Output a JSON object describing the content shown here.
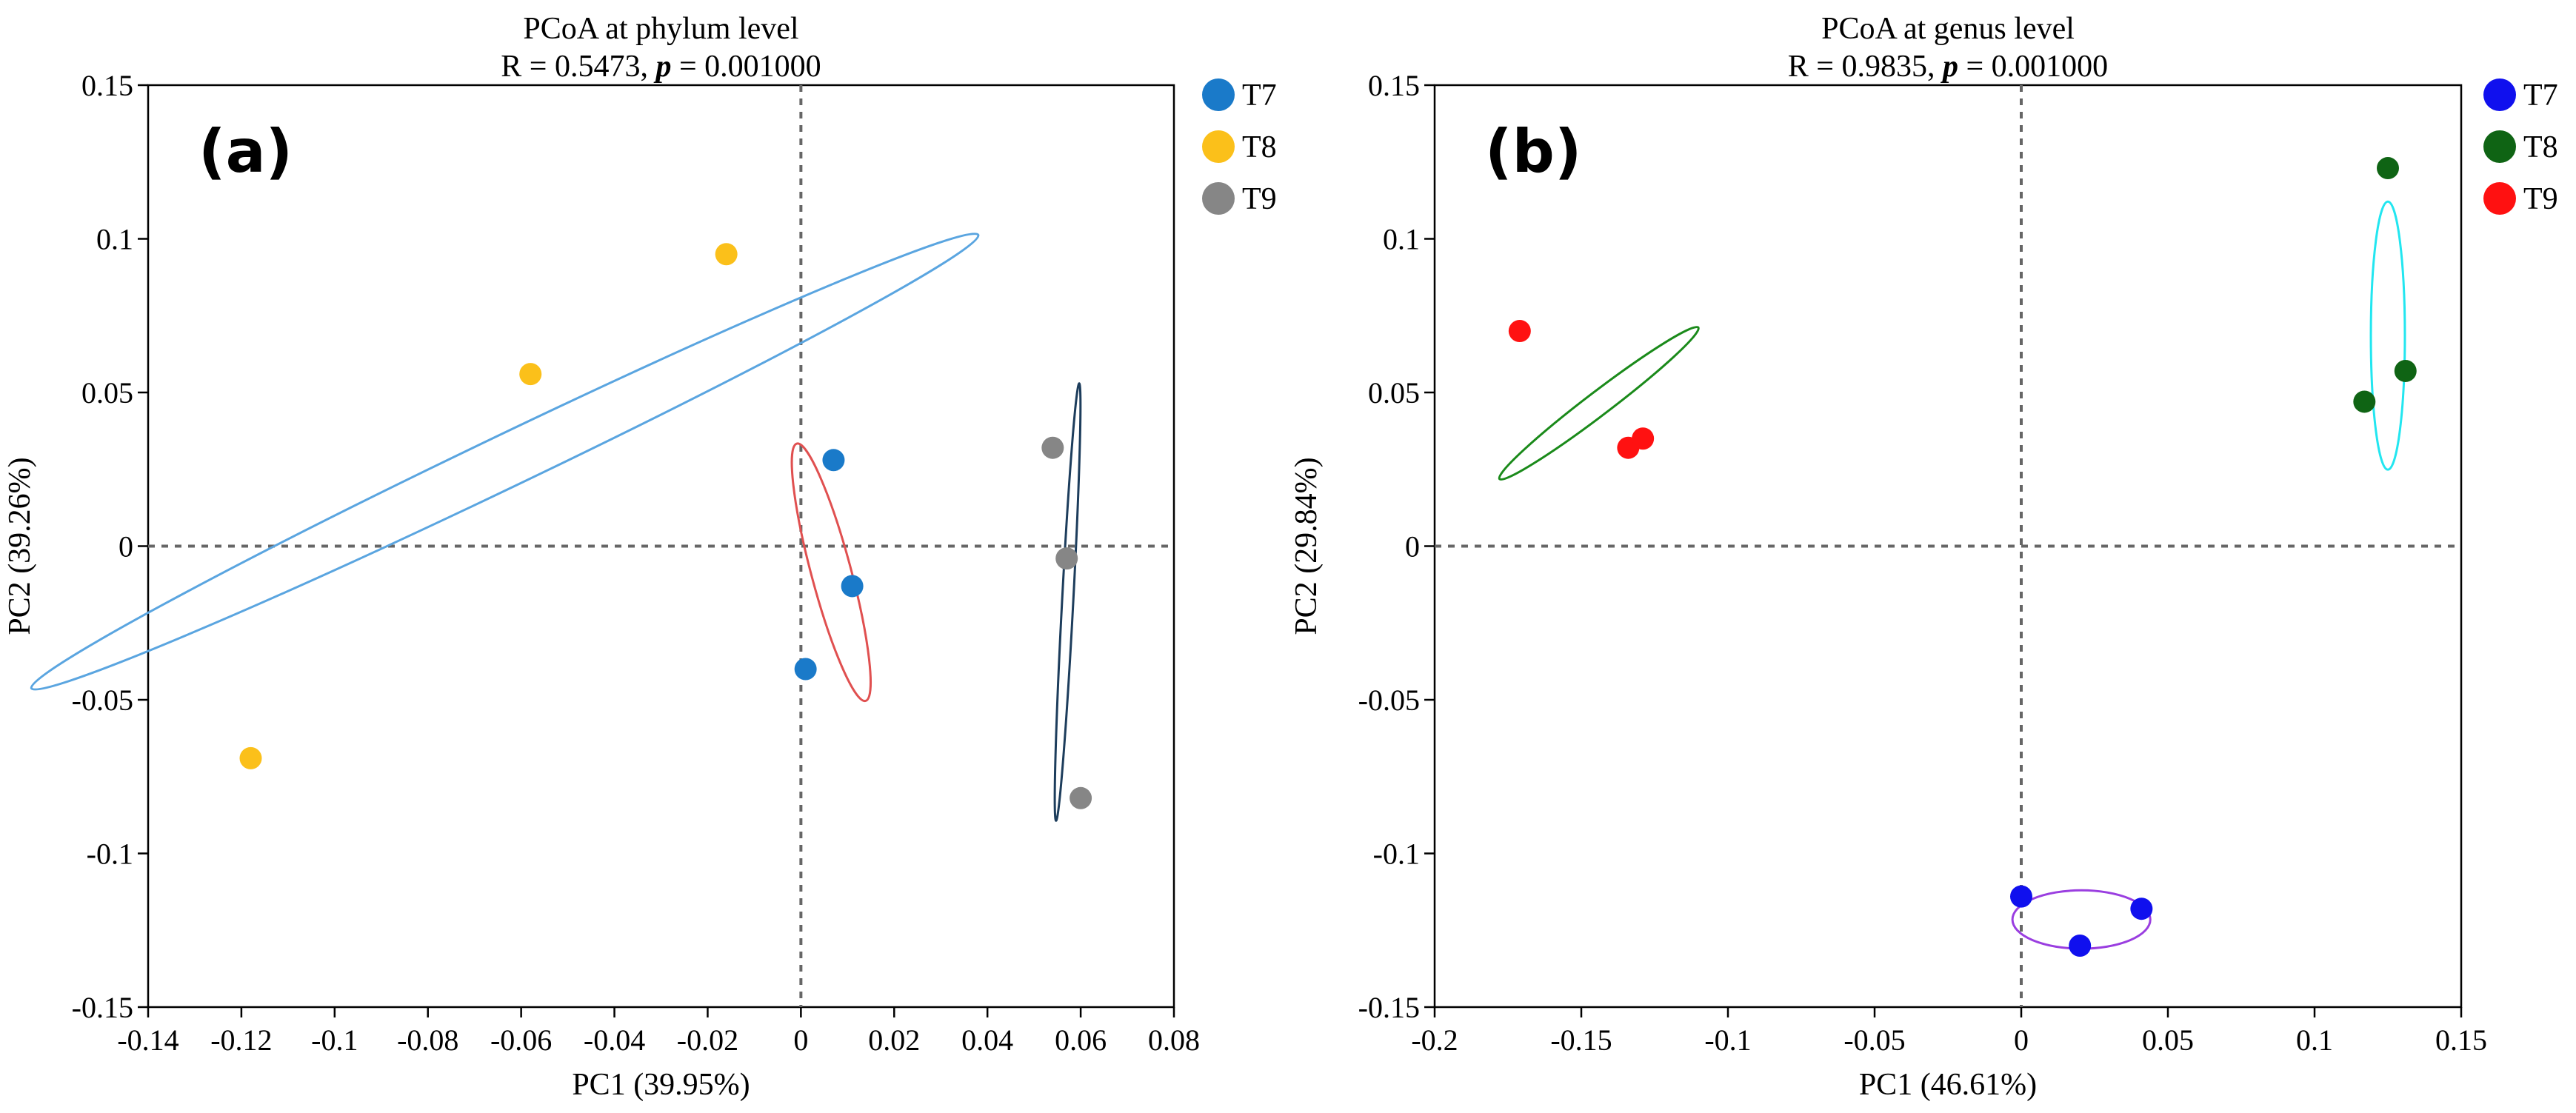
{
  "chart_data": [
    {
      "type": "scatter",
      "panel_label": "(a)",
      "title": "PCoA  at phylum level",
      "subtitle_prefix": "R = 0.5473,  ",
      "subtitle_p": "p",
      "subtitle_suffix": " = 0.001000",
      "xlabel": "PC1 (39.95%)",
      "ylabel": "PC2 (39.26%)",
      "xlim": [
        -0.14,
        0.08
      ],
      "ylim": [
        -0.15,
        0.15
      ],
      "xticks": [
        "-0.14",
        "-0.12",
        "-0.1",
        "-0.08",
        "-0.06",
        "-0.04",
        "-0.02",
        "0",
        "0.02",
        "0.04",
        "0.06",
        "0.08"
      ],
      "yticks": [
        "-0.15",
        "-0.1",
        "-0.05",
        "0",
        "0.05",
        "0.1",
        "0.15"
      ],
      "reference_lines": {
        "x": 0,
        "y": 0
      },
      "legend_position": "right-top",
      "series": [
        {
          "name": "T7",
          "color": "#1a7ac9",
          "ellipse_color": "#e05050",
          "points": [
            [
              0.007,
              0.028
            ],
            [
              0.011,
              -0.013
            ],
            [
              0.001,
              -0.04
            ]
          ],
          "ellipse": {
            "cx": 0.0065,
            "cy": -0.0085,
            "rx_data": 0.0043,
            "ry_data": 0.0425,
            "angle_deg": 10
          }
        },
        {
          "name": "T8",
          "color": "#fbc01a",
          "ellipse_color": "#5aa5e0",
          "points": [
            [
              -0.058,
              0.056
            ],
            [
              -0.016,
              0.095
            ],
            [
              -0.118,
              -0.069
            ]
          ],
          "ellipse": {
            "cx": -0.0635,
            "cy": 0.0275,
            "rx_data": 0.0071,
            "ry_data": 0.1255,
            "angle_deg": -54
          }
        },
        {
          "name": "T9",
          "color": "#868686",
          "ellipse_color": "#1d3d5c",
          "points": [
            [
              0.054,
              0.032
            ],
            [
              0.057,
              -0.004
            ],
            [
              0.06,
              -0.082
            ]
          ],
          "ellipse": {
            "cx": 0.0572,
            "cy": -0.0182,
            "rx_data": 0.0012,
            "ry_data": 0.0712,
            "angle_deg": -2
          }
        }
      ]
    },
    {
      "type": "scatter",
      "panel_label": "(b)",
      "title": "PCoA  at genus level",
      "subtitle_prefix": "R = 0.9835,  ",
      "subtitle_p": "p",
      "subtitle_suffix": " = 0.001000",
      "xlabel": "PC1 (46.61%)",
      "ylabel": "PC2  (29.84%)",
      "xlim": [
        -0.2,
        0.15
      ],
      "ylim": [
        -0.15,
        0.15
      ],
      "xticks": [
        "-0.2",
        "-0.15",
        "-0.1",
        "-0.05",
        "0",
        "0.05",
        "0.1",
        "0.15"
      ],
      "yticks": [
        "-0.15",
        "-0.1",
        "-0.05",
        "0",
        "0.05",
        "0.1",
        "0.15"
      ],
      "reference_lines": {
        "x": 0,
        "y": 0
      },
      "legend_position": "right-top",
      "series": [
        {
          "name": "T7",
          "color": "#1010ee",
          "ellipse_color": "#9a3ee0",
          "points": [
            [
              0.0,
              -0.114
            ],
            [
              0.02,
              -0.13
            ],
            [
              0.041,
              -0.118
            ]
          ],
          "ellipse": {
            "cx": 0.0205,
            "cy": -0.1215,
            "rx_data": 0.0235,
            "ry_data": 0.0095,
            "angle_deg": 0
          }
        },
        {
          "name": "T8",
          "color": "#0f6414",
          "ellipse_color": "#22e6f0",
          "points": [
            [
              0.125,
              0.123
            ],
            [
              0.131,
              0.057
            ],
            [
              0.117,
              0.047
            ]
          ],
          "ellipse": {
            "cx": 0.125,
            "cy": 0.0685,
            "rx_data": 0.0058,
            "ry_data": 0.0436,
            "angle_deg": 0
          }
        },
        {
          "name": "T9",
          "color": "#ff1111",
          "ellipse_color": "#1a8a1a",
          "points": [
            [
              -0.171,
              0.07
            ],
            [
              -0.134,
              0.032
            ],
            [
              -0.129,
              0.035
            ]
          ],
          "ellipse": {
            "cx": -0.144,
            "cy": 0.0465,
            "rx_data": 0.0039,
            "ry_data": 0.0419,
            "angle_deg": -54
          }
        }
      ]
    }
  ]
}
